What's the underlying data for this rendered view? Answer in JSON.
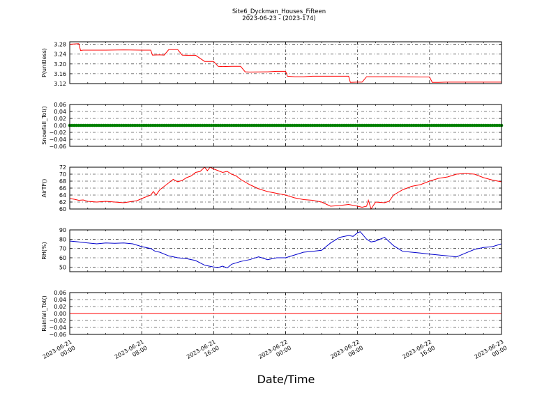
{
  "figure": {
    "title_line1": "Site6_Dyckman_Houses_Fifteen",
    "title_line2": "2023-06-23 - (2023-174)",
    "xlabel": "Date/Time"
  },
  "x_ticks": [
    {
      "line1": "2023-06-21",
      "line2": "00:00"
    },
    {
      "line1": "2023-06-21",
      "line2": "08:00"
    },
    {
      "line1": "2023-06-21",
      "line2": "16:00"
    },
    {
      "line1": "2023-06-22",
      "line2": "00:00"
    },
    {
      "line1": "2023-06-22",
      "line2": "08:00"
    },
    {
      "line1": "2023-06-22",
      "line2": "16:00"
    },
    {
      "line1": "2023-06-23",
      "line2": "00:00"
    }
  ],
  "chart_data": [
    {
      "type": "line",
      "ylabel": "P(unitless)",
      "ylim": [
        3.12,
        3.29
      ],
      "yticks": [
        "3.12",
        "3.16",
        "3.20",
        "3.24",
        "3.28"
      ],
      "xlim": [
        "2023-06-21 00:00",
        "2023-06-23 00:00"
      ],
      "grid": true,
      "color": "#ff0000",
      "x_hours": [
        0,
        1,
        1.2,
        1.5,
        3,
        4,
        6,
        8,
        9,
        9.2,
        10,
        10.5,
        11,
        12,
        12.5,
        13,
        14,
        15,
        16,
        16.5,
        17,
        18,
        19,
        19.5,
        20,
        22,
        23,
        24,
        24.2,
        25,
        26,
        27,
        28,
        30,
        31,
        31.2,
        32,
        32.5,
        33,
        35,
        36,
        39,
        40,
        40.3,
        41,
        42,
        44,
        46,
        48
      ],
      "y": [
        3.28,
        3.282,
        3.255,
        3.256,
        3.256,
        3.256,
        3.257,
        3.256,
        3.256,
        3.236,
        3.237,
        3.236,
        3.258,
        3.258,
        3.236,
        3.235,
        3.235,
        3.21,
        3.21,
        3.19,
        3.189,
        3.19,
        3.19,
        3.168,
        3.167,
        3.168,
        3.17,
        3.17,
        3.15,
        3.148,
        3.148,
        3.15,
        3.15,
        3.15,
        3.15,
        3.125,
        3.126,
        3.126,
        3.148,
        3.148,
        3.148,
        3.147,
        3.147,
        3.125,
        3.125,
        3.126,
        3.126,
        3.126,
        3.126
      ]
    },
    {
      "type": "scatter",
      "ylabel": "Snowfall_Tot()",
      "ylim": [
        -0.06,
        0.06
      ],
      "yticks": [
        "−0.06",
        "−0.04",
        "−0.02",
        "0.00",
        "0.02",
        "0.04",
        "0.06"
      ],
      "xlim": [
        "2023-06-21 00:00",
        "2023-06-23 00:00"
      ],
      "grid": true,
      "color": "#008000",
      "constant_value": 0.0,
      "interval_hours": 0.25
    },
    {
      "type": "line",
      "ylabel": "AirTF()",
      "ylim": [
        60,
        72
      ],
      "yticks": [
        "60",
        "62",
        "64",
        "66",
        "68",
        "70",
        "72"
      ],
      "xlim": [
        "2023-06-21 00:00",
        "2023-06-23 00:00"
      ],
      "grid": true,
      "color": "#ff0000",
      "x_hours": [
        0,
        0.5,
        1,
        1.5,
        2,
        3,
        4,
        5,
        6,
        7,
        7.5,
        8,
        8.5,
        9,
        9.3,
        9.6,
        10,
        10.5,
        11,
        11.5,
        12,
        12.5,
        13,
        13.5,
        14,
        14.5,
        15,
        15.3,
        15.6,
        16,
        17,
        17.5,
        18,
        18.5,
        19,
        20,
        21,
        22,
        23,
        24,
        25,
        26,
        27,
        28,
        28.5,
        29,
        30,
        31,
        32,
        32.5,
        33,
        33.2,
        33.5,
        34,
        35,
        35.5,
        36,
        37,
        38,
        39,
        40,
        41,
        42,
        43,
        44,
        45,
        46,
        47,
        48
      ],
      "y": [
        63,
        62.8,
        62.5,
        62.6,
        62.2,
        62,
        62.2,
        62,
        61.8,
        62.2,
        62.4,
        63,
        63.5,
        64,
        65,
        64,
        65.5,
        66.5,
        67.5,
        68.5,
        67.8,
        68.2,
        69,
        69.5,
        70.5,
        70.8,
        72,
        71,
        72,
        71.5,
        70.5,
        70.8,
        70,
        69.5,
        68.5,
        67,
        65.8,
        65,
        64.5,
        64,
        63.2,
        62.7,
        62.5,
        62,
        61.4,
        60.8,
        61,
        61.3,
        60.8,
        60.5,
        60.8,
        62.5,
        60,
        62,
        61.8,
        62.2,
        64,
        65.5,
        66.5,
        67,
        68,
        68.8,
        69.2,
        70,
        70.2,
        70,
        69,
        68.3,
        67.8
      ]
    },
    {
      "type": "line",
      "ylabel": "RH(%)",
      "ylim": [
        45,
        90
      ],
      "yticks": [
        "50",
        "60",
        "70",
        "80",
        "90"
      ],
      "xlim": [
        "2023-06-21 00:00",
        "2023-06-23 00:00"
      ],
      "grid": true,
      "color": "#0000cc",
      "x_hours": [
        0,
        1,
        2,
        3,
        4,
        5,
        6,
        7,
        8,
        9,
        9.5,
        10,
        11,
        12,
        13,
        14,
        15,
        15.5,
        16,
        16.5,
        17,
        17.5,
        18,
        19,
        20,
        21,
        22,
        23,
        24,
        25,
        26,
        27,
        28,
        28.5,
        29,
        30,
        31,
        31.5,
        32,
        32.3,
        33,
        33.5,
        34,
        35,
        36,
        37,
        38,
        39,
        40,
        41,
        42,
        43,
        44,
        45,
        46,
        47,
        48
      ],
      "y": [
        78,
        77,
        76,
        75,
        76,
        75.5,
        76,
        75,
        72,
        70,
        67,
        66,
        62,
        60,
        59,
        57,
        52,
        51,
        50,
        49.5,
        51,
        49,
        53,
        56,
        58,
        61,
        58,
        60,
        60,
        63,
        66,
        67,
        68,
        72,
        76,
        82,
        84,
        83,
        87,
        88,
        80,
        77,
        78,
        82,
        73,
        67,
        66,
        65,
        64,
        63,
        62,
        61,
        65,
        69,
        71,
        72,
        75
      ]
    },
    {
      "type": "line",
      "ylabel": "Rainfall_Tot()",
      "ylim": [
        -0.06,
        0.06
      ],
      "yticks": [
        "−0.06",
        "−0.04",
        "−0.02",
        "0.00",
        "0.02",
        "0.04",
        "0.06"
      ],
      "xlim": [
        "2023-06-21 00:00",
        "2023-06-23 00:00"
      ],
      "grid": true,
      "color": "#ff0000",
      "x_hours": [
        0,
        48
      ],
      "y": [
        0,
        0
      ]
    }
  ]
}
